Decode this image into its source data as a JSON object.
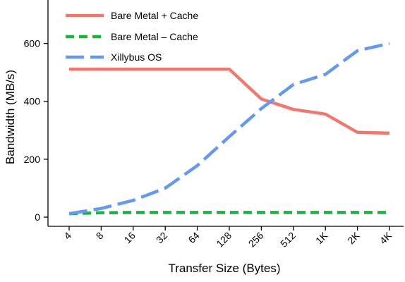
{
  "chart_data": {
    "type": "line",
    "title": "",
    "xlabel": "Transfer Size (Bytes)",
    "ylabel": "Bandwidth (MB/s)",
    "categories": [
      "4",
      "8",
      "16",
      "32",
      "64",
      "128",
      "256",
      "512",
      "1K",
      "2K",
      "4K"
    ],
    "ylim": [
      0,
      750
    ],
    "yticks": [
      0,
      200,
      400,
      600
    ],
    "grid": false,
    "legend_position": "top-left",
    "series": [
      {
        "name": "Bare Metal + Cache",
        "color": "#f07870",
        "dash": "solid",
        "values": [
          511,
          511,
          511,
          511,
          511,
          511,
          408,
          372,
          356,
          293,
          290
        ]
      },
      {
        "name": "Bare Metal – Cache",
        "color": "#1ab33e",
        "dash": "dashed",
        "values": [
          12,
          15,
          16,
          16,
          16,
          16,
          16,
          16,
          16,
          16,
          16
        ]
      },
      {
        "name": "Xillybus OS",
        "color": "#6699ee",
        "dash": "dashed",
        "values": [
          12,
          30,
          58,
          100,
          178,
          278,
          375,
          458,
          493,
          575,
          600
        ]
      }
    ]
  }
}
